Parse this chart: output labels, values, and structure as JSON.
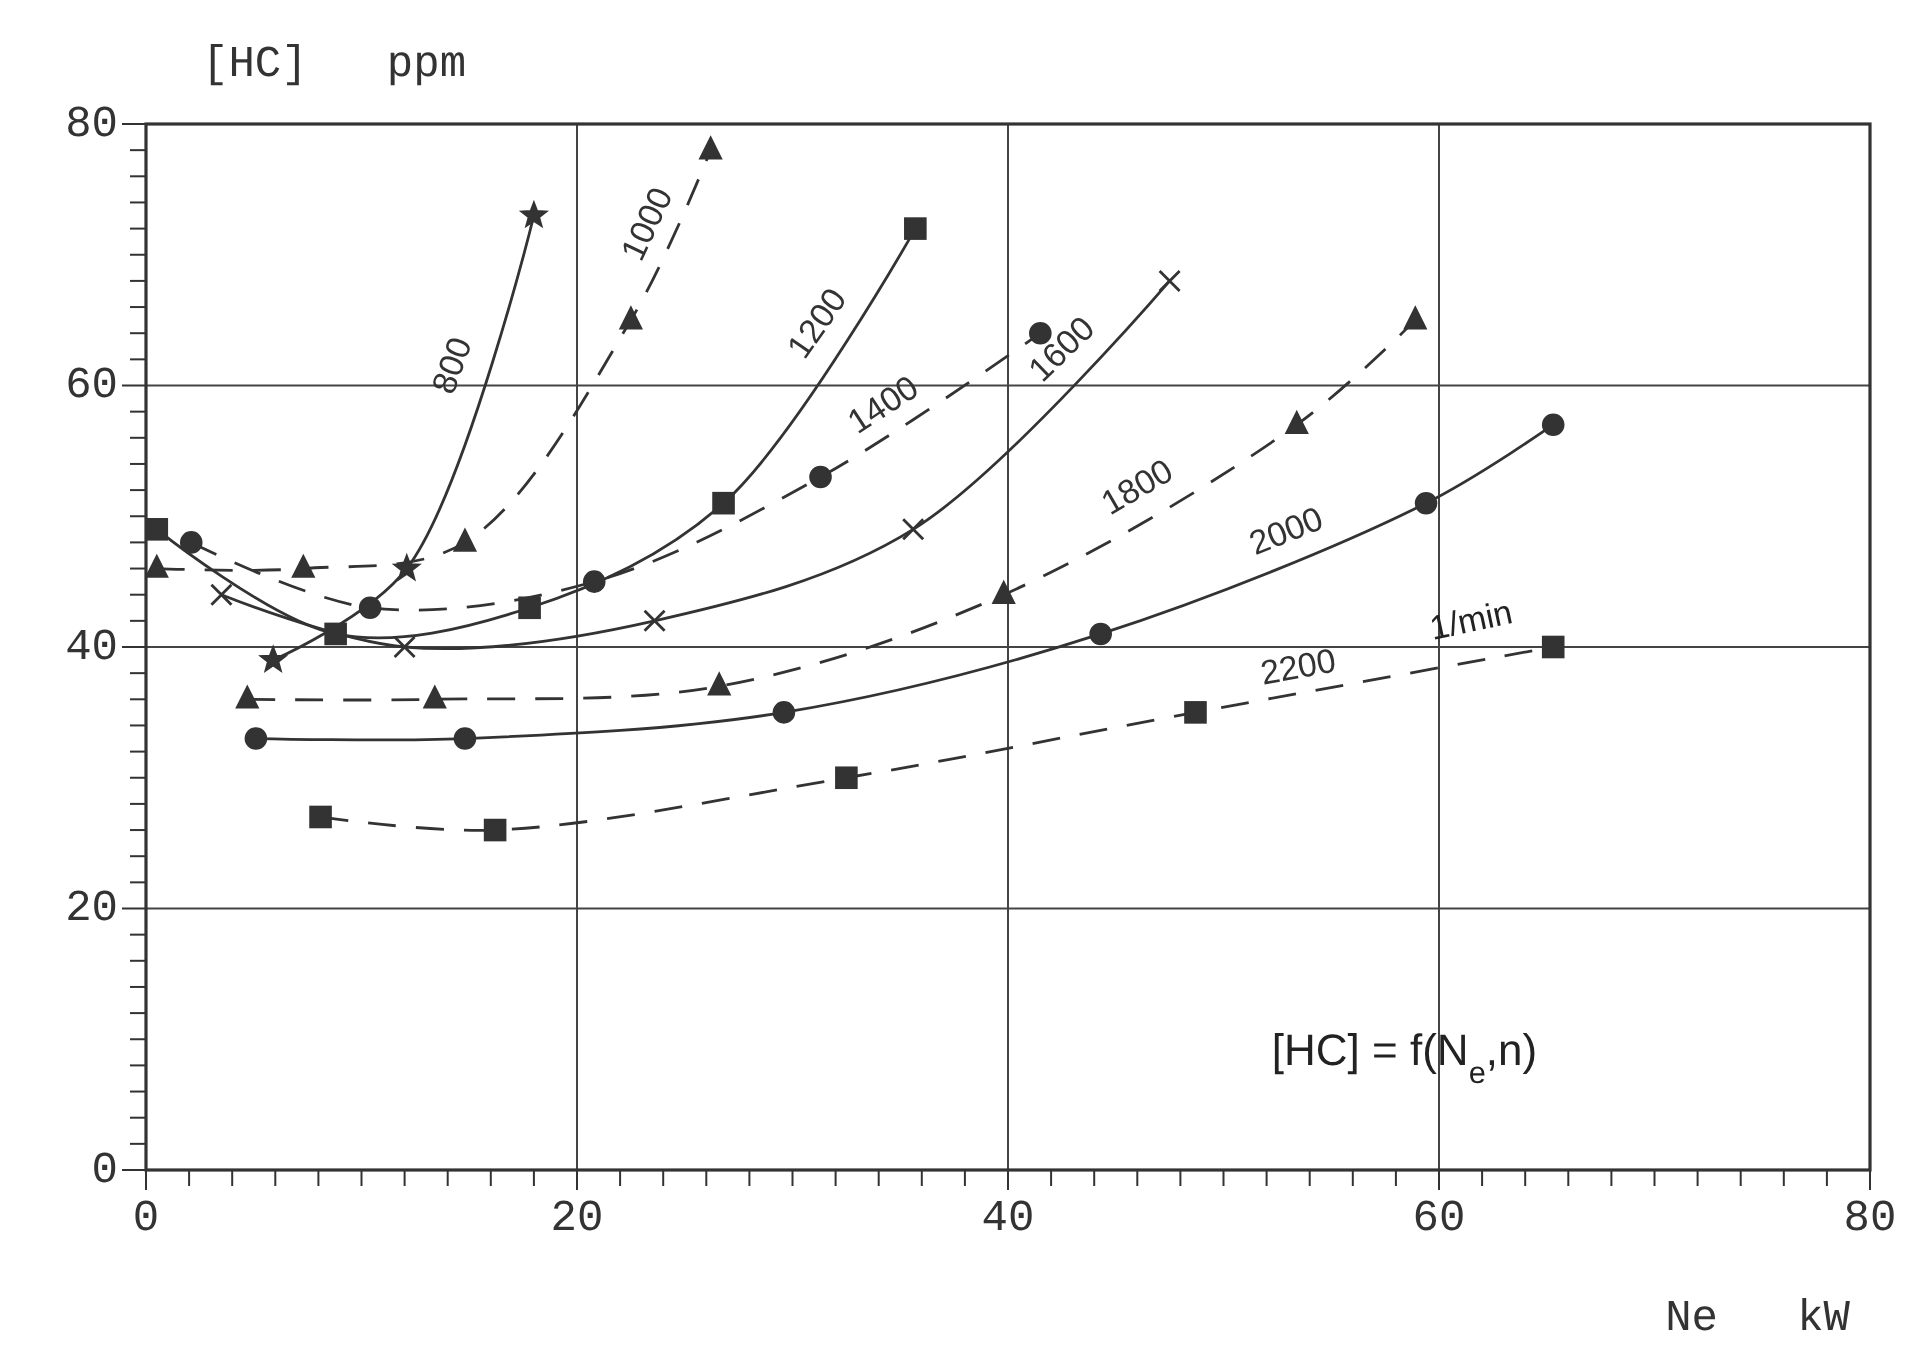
{
  "chart_data": {
    "type": "line",
    "xlabel": "Ne   kW",
    "ylabel": "[HC]   ppm",
    "xlim": [
      0,
      80
    ],
    "ylim": [
      0,
      80
    ],
    "xticks": [
      0,
      {
        "value": 2,
        "label": null
      },
      {
        "value": 4,
        "label": null
      },
      {
        "value": 6,
        "label": null
      },
      {
        "value": 8,
        "label": null
      },
      {
        "value": 10,
        "label": null
      },
      {
        "value": 12,
        "label": null
      },
      {
        "value": 14,
        "label": null
      },
      {
        "value": 16,
        "label": null
      },
      {
        "value": 18,
        "label": null
      },
      20,
      {
        "value": 22,
        "label": null
      },
      {
        "value": 24,
        "label": null
      },
      {
        "value": 26,
        "label": null
      },
      {
        "value": 28,
        "label": null
      },
      {
        "value": 30,
        "label": null
      },
      {
        "value": 32,
        "label": null
      },
      {
        "value": 34,
        "label": null
      },
      {
        "value": 36,
        "label": null
      },
      {
        "value": 38,
        "label": null
      },
      40,
      {
        "value": 42,
        "label": null
      },
      {
        "value": 44,
        "label": null
      },
      {
        "value": 46,
        "label": null
      },
      {
        "value": 48,
        "label": null
      },
      {
        "value": 50,
        "label": null
      },
      {
        "value": 52,
        "label": null
      },
      {
        "value": 54,
        "label": null
      },
      {
        "value": 56,
        "label": null
      },
      {
        "value": 58,
        "label": null
      },
      60,
      {
        "value": 62,
        "label": null
      },
      {
        "value": 64,
        "label": null
      },
      {
        "value": 66,
        "label": null
      },
      {
        "value": 68,
        "label": null
      },
      {
        "value": 70,
        "label": null
      },
      {
        "value": 72,
        "label": null
      },
      {
        "value": 74,
        "label": null
      },
      {
        "value": 76,
        "label": null
      },
      {
        "value": 78,
        "label": null
      },
      80
    ],
    "yticks": [
      0,
      {
        "value": 2,
        "label": null
      },
      {
        "value": 4,
        "label": null
      },
      {
        "value": 6,
        "label": null
      },
      {
        "value": 8,
        "label": null
      },
      {
        "value": 10,
        "label": null
      },
      {
        "value": 12,
        "label": null
      },
      {
        "value": 14,
        "label": null
      },
      {
        "value": 16,
        "label": null
      },
      {
        "value": 18,
        "label": null
      },
      20,
      {
        "value": 22,
        "label": null
      },
      {
        "value": 24,
        "label": null
      },
      {
        "value": 26,
        "label": null
      },
      {
        "value": 28,
        "label": null
      },
      {
        "value": 30,
        "label": null
      },
      {
        "value": 32,
        "label": null
      },
      {
        "value": 34,
        "label": null
      },
      {
        "value": 36,
        "label": null
      },
      {
        "value": 38,
        "label": null
      },
      40,
      {
        "value": 42,
        "label": null
      },
      {
        "value": 44,
        "label": null
      },
      {
        "value": 46,
        "label": null
      },
      {
        "value": 48,
        "label": null
      },
      {
        "value": 50,
        "label": null
      },
      {
        "value": 52,
        "label": null
      },
      {
        "value": 54,
        "label": null
      },
      {
        "value": 56,
        "label": null
      },
      {
        "value": 58,
        "label": null
      },
      60,
      {
        "value": 62,
        "label": null
      },
      {
        "value": 64,
        "label": null
      },
      {
        "value": 66,
        "label": null
      },
      {
        "value": 68,
        "label": null
      },
      {
        "value": 70,
        "label": null
      },
      {
        "value": 72,
        "label": null
      },
      {
        "value": 74,
        "label": null
      },
      {
        "value": 76,
        "label": null
      },
      {
        "value": 78,
        "label": null
      },
      80
    ],
    "grid": true,
    "series": [
      {
        "name": "800",
        "color": "#333333",
        "marker": "star",
        "line_style": "solid",
        "x": [
          5.9,
          12.1,
          18
        ],
        "values": [
          39,
          46,
          73
        ]
      },
      {
        "name": "1000",
        "color": "#333333",
        "marker": "triangle",
        "line_style": "dashed",
        "x": [
          0.5,
          7.3,
          14.8,
          22.5,
          26.2
        ],
        "values": [
          46,
          46,
          48,
          65,
          78
        ]
      },
      {
        "name": "1200",
        "color": "#333333",
        "marker": "square",
        "line_style": "solid",
        "x": [
          0.5,
          8.8,
          17.8,
          26.8,
          35.7
        ],
        "values": [
          49,
          41,
          43,
          51,
          72
        ]
      },
      {
        "name": "1400",
        "color": "#333333",
        "marker": "circle",
        "line_style": "dashed",
        "x": [
          2.1,
          10.4,
          20.8,
          31.3,
          41.5
        ],
        "values": [
          48,
          43,
          45,
          53,
          64
        ]
      },
      {
        "name": "1600",
        "color": "#333333",
        "marker": "cross",
        "line_style": "solid",
        "x": [
          3.5,
          12,
          23.6,
          35.6,
          47.5
        ],
        "values": [
          44,
          40,
          42,
          49,
          68
        ]
      },
      {
        "name": "1800",
        "color": "#333333",
        "marker": "triangle",
        "line_style": "dashed",
        "x": [
          4.7,
          13.4,
          26.6,
          39.8,
          53.4,
          58.9
        ],
        "values": [
          36,
          36,
          37,
          44,
          57,
          65
        ]
      },
      {
        "name": "2000",
        "color": "#333333",
        "marker": "circle",
        "line_style": "solid",
        "x": [
          5.1,
          14.8,
          29.6,
          44.3,
          59.4,
          65.3
        ],
        "values": [
          33,
          33,
          35,
          41,
          51,
          57
        ]
      },
      {
        "name": "2200",
        "color": "#333333",
        "marker": "square",
        "line_style": "dashed",
        "x": [
          8.1,
          16.2,
          32.5,
          48.7,
          65.3
        ],
        "values": [
          27,
          26,
          30,
          35,
          40
        ]
      }
    ],
    "annotations": [
      "1/min",
      "[HC] = f(N$_{e}$,n)"
    ]
  }
}
